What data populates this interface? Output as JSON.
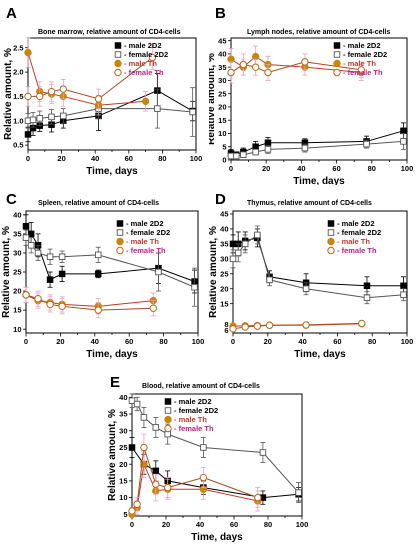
{
  "colors": {
    "male_2D2": "#000000",
    "female_2D2": "#555555",
    "male_Th": "#c0392b",
    "female_Th": "#a84a1a",
    "male_Th_marker": "#c8860a",
    "female_Th_marker_stroke": "#b8661a",
    "error_pink": "#e8a0c8",
    "legend_female_Th_text": "#c02080"
  },
  "chart_data": [
    {
      "id": "A",
      "panel_label": "A",
      "type": "line",
      "title": "Bone marrow, relative amount of CD4-cells",
      "xlabel": "Time, days",
      "ylabel": "Relative amount, %",
      "xlim": [
        0,
        100
      ],
      "ylim": [
        0.4,
        2.7
      ],
      "yticks": [
        0.5,
        1.0,
        1.5,
        2.0,
        2.5
      ],
      "ytick_labels": [
        "0.5",
        "1.0",
        "1.5",
        "2.0",
        "2.5"
      ],
      "xticks": [
        0,
        10,
        20,
        30,
        40,
        50,
        60,
        70,
        80,
        90,
        100
      ],
      "xtick_labels": [
        "0",
        "10",
        "20",
        "30",
        "40",
        "50",
        "60",
        "70",
        "80",
        "90",
        "100"
      ],
      "legend": [
        "- male 2D2",
        "- female 2D2",
        "- male Th",
        "- female Th"
      ],
      "series": [
        {
          "key": "male_2D2",
          "x": [
            0,
            3,
            7,
            14,
            21,
            42,
            77,
            98
          ],
          "y": [
            0.72,
            0.85,
            0.9,
            0.92,
            1.0,
            1.1,
            1.62,
            1.2
          ],
          "err": [
            0.15,
            0.15,
            0.12,
            0.15,
            0.15,
            0.3,
            0.35,
            0.2
          ]
        },
        {
          "key": "female_2D2",
          "x": [
            0,
            3,
            7,
            14,
            21,
            42,
            77,
            98
          ],
          "y": [
            1.0,
            1.02,
            1.05,
            1.08,
            1.1,
            1.25,
            1.25,
            1.18
          ],
          "err": [
            0.15,
            0.15,
            0.15,
            0.15,
            0.15,
            0.2,
            0.4,
            0.5
          ]
        },
        {
          "key": "male_Th",
          "x": [
            0,
            7,
            14,
            21,
            42,
            70
          ],
          "y": [
            2.4,
            1.6,
            1.55,
            1.5,
            1.32,
            1.4
          ],
          "err": [
            0.3,
            0.2,
            0.2,
            0.2,
            0.2,
            0.2
          ]
        },
        {
          "key": "female_Th",
          "x": [
            0,
            7,
            14,
            21,
            42,
            74
          ],
          "y": [
            1.5,
            1.5,
            1.6,
            1.65,
            1.45,
            2.3
          ],
          "err": [
            0.2,
            0.2,
            0.2,
            0.2,
            0.2,
            0.25
          ]
        }
      ]
    },
    {
      "id": "B",
      "panel_label": "B",
      "type": "line",
      "title": "Lymph nodes, relative amount of CD4-cells",
      "xlabel": "Time, days",
      "ylabel": "Relative amount, %",
      "xlim": [
        0,
        100
      ],
      "ylim": [
        0,
        46
      ],
      "yticks": [
        0,
        5,
        10,
        15,
        20,
        25,
        30,
        35,
        40,
        45
      ],
      "ytick_labels": [
        "0",
        "5",
        "10",
        "15",
        "20",
        "25",
        "30",
        "35",
        "40",
        "45"
      ],
      "xticks": [
        0,
        10,
        20,
        30,
        40,
        50,
        60,
        70,
        80,
        90,
        100
      ],
      "xtick_labels": [
        "0",
        "10",
        "20",
        "30",
        "40",
        "50",
        "60",
        "70",
        "80",
        "90",
        "100"
      ],
      "legend": [
        "- male 2D2",
        "- female 2D2",
        "- male Th",
        "- female Th"
      ],
      "series": [
        {
          "key": "male_2D2",
          "x": [
            0,
            3,
            7,
            14,
            21,
            42,
            77,
            98
          ],
          "y": [
            2.5,
            2.0,
            3.0,
            5.0,
            6.5,
            6.5,
            7.0,
            11.0
          ],
          "err": [
            1.5,
            1.0,
            1.5,
            2.0,
            2.0,
            1.5,
            2.0,
            3.0
          ]
        },
        {
          "key": "female_2D2",
          "x": [
            0,
            3,
            7,
            14,
            21,
            42,
            77,
            98
          ],
          "y": [
            1.5,
            1.5,
            2.0,
            3.0,
            4.0,
            4.5,
            6.0,
            7.0
          ],
          "err": [
            1.0,
            1.0,
            1.0,
            1.0,
            1.5,
            1.5,
            1.5,
            3.0
          ]
        },
        {
          "key": "male_Th",
          "x": [
            0,
            7,
            14,
            21,
            42,
            74
          ],
          "y": [
            38.0,
            35.0,
            39.0,
            36.0,
            35.0,
            33.0
          ],
          "err": [
            4.0,
            3.0,
            4.0,
            3.0,
            3.0,
            3.0
          ]
        },
        {
          "key": "female_Th",
          "x": [
            0,
            7,
            14,
            21,
            42,
            74
          ],
          "y": [
            33.0,
            36.0,
            35.0,
            33.0,
            37.0,
            34.0
          ],
          "err": [
            4.0,
            4.0,
            3.0,
            3.0,
            3.0,
            3.0
          ]
        }
      ]
    },
    {
      "id": "C",
      "panel_label": "C",
      "type": "line",
      "title": "Spleen, relative amount of CD4-cells",
      "xlabel": "Time, days",
      "ylabel": "Relative amount, %",
      "xlim": [
        0,
        100
      ],
      "ylim": [
        9,
        41
      ],
      "yticks": [
        10,
        15,
        20,
        25,
        30,
        35,
        40
      ],
      "ytick_labels": [
        "10",
        "15",
        "20",
        "25",
        "30",
        "35",
        "40"
      ],
      "xticks": [
        0,
        10,
        20,
        30,
        40,
        50,
        60,
        70,
        80,
        90,
        100
      ],
      "xtick_labels": [
        "0",
        "10",
        "20",
        "30",
        "40",
        "50",
        "60",
        "70",
        "80",
        "90",
        "100"
      ],
      "legend": [
        "- male 2D2",
        "- female 2D2",
        "- male Th",
        "- female Th"
      ],
      "series": [
        {
          "key": "male_2D2",
          "x": [
            0,
            3,
            7,
            14,
            21,
            42,
            77,
            98
          ],
          "y": [
            37.0,
            35.0,
            32.0,
            23.0,
            24.5,
            24.5,
            26.0,
            22.5
          ],
          "err": [
            3.0,
            3.0,
            3.0,
            2.0,
            2.0,
            1.0,
            4.0,
            3.0
          ]
        },
        {
          "key": "female_2D2",
          "x": [
            0,
            3,
            7,
            14,
            21,
            42,
            77,
            98
          ],
          "y": [
            34.0,
            32.0,
            30.0,
            29.0,
            29.0,
            29.5,
            25.0,
            21.0
          ],
          "err": [
            2.0,
            2.0,
            2.0,
            2.0,
            1.5,
            2.0,
            5.0,
            5.0
          ]
        },
        {
          "key": "male_Th",
          "x": [
            0,
            7,
            14,
            21,
            42,
            74
          ],
          "y": [
            19.0,
            17.5,
            17.0,
            16.5,
            16.0,
            17.5
          ],
          "err": [
            2.0,
            2.0,
            2.0,
            2.0,
            2.0,
            2.0
          ]
        },
        {
          "key": "female_Th",
          "x": [
            0,
            7,
            14,
            21,
            42,
            74
          ],
          "y": [
            19.0,
            18.0,
            16.5,
            16.0,
            15.0,
            15.5
          ],
          "err": [
            2.0,
            2.0,
            2.0,
            2.0,
            2.0,
            2.0
          ]
        }
      ]
    },
    {
      "id": "D",
      "panel_label": "D",
      "type": "line",
      "title": "Thymus, relative amount of CD4-cells",
      "xlabel": "Time, days",
      "ylabel": "Relative amount, %",
      "xlim": [
        0,
        100
      ],
      "ylim": [
        5.2,
        46
      ],
      "yticks": [
        6,
        8,
        15,
        20,
        25,
        30,
        35,
        40,
        45
      ],
      "ytick_labels": [
        "6",
        "8",
        "15",
        "20",
        "25",
        "30",
        "35",
        "40",
        "45"
      ],
      "xticks": [
        0,
        10,
        20,
        30,
        40,
        50,
        60,
        70,
        80,
        90,
        100
      ],
      "xtick_labels": [
        "0",
        "10",
        "20",
        "30",
        "40",
        "50",
        "60",
        "70",
        "80",
        "90",
        "100"
      ],
      "legend": [
        "- male 2D2",
        "- female 2D2",
        "- male Th",
        "- female Th"
      ],
      "series": [
        {
          "key": "male_2D2",
          "x": [
            0,
            3,
            7,
            14,
            21,
            42,
            77,
            98
          ],
          "y": [
            35.0,
            35.0,
            36.0,
            37.0,
            24.0,
            22.0,
            21.0,
            21.0
          ],
          "err": [
            3.0,
            4.0,
            3.0,
            3.0,
            2.0,
            3.0,
            3.0,
            3.0
          ]
        },
        {
          "key": "female_2D2",
          "x": [
            0,
            3,
            7,
            14,
            21,
            42,
            77,
            98
          ],
          "y": [
            30.0,
            32.0,
            35.0,
            38.0,
            23.0,
            20.0,
            17.0,
            18.0
          ],
          "err": [
            3.0,
            3.0,
            3.0,
            3.0,
            2.0,
            2.0,
            2.0,
            2.0
          ]
        },
        {
          "key": "male_Th",
          "x": [
            0,
            7,
            14,
            21,
            42,
            74
          ],
          "y": [
            7.5,
            7.6,
            7.7,
            7.8,
            7.8,
            8.3
          ],
          "err": [
            0.7,
            0.6,
            0.6,
            0.6,
            0.8,
            0.7
          ]
        },
        {
          "key": "female_Th",
          "x": [
            0,
            7,
            14,
            21,
            42,
            74
          ],
          "y": [
            6.6,
            7.2,
            7.5,
            7.8,
            7.9,
            8.4
          ],
          "err": [
            0.7,
            0.6,
            0.6,
            0.6,
            0.6,
            0.7
          ]
        }
      ]
    },
    {
      "id": "E",
      "panel_label": "E",
      "type": "line",
      "title": "Blood, relative amount of CD4-cells",
      "xlabel": "Time, days",
      "ylabel": "Relative amount, %",
      "xlim": [
        0,
        100
      ],
      "ylim": [
        4.5,
        41
      ],
      "yticks": [
        5,
        10,
        15,
        20,
        25,
        30,
        35,
        40
      ],
      "ytick_labels": [
        "5",
        "10",
        "15",
        "20",
        "25",
        "30",
        "35",
        "40"
      ],
      "xticks": [
        0,
        10,
        20,
        30,
        40,
        50,
        60,
        70,
        80,
        90,
        100
      ],
      "xtick_labels": [
        "0",
        "10",
        "20",
        "30",
        "40",
        "50",
        "60",
        "70",
        "80",
        "90",
        "100"
      ],
      "legend": [
        "- male 2D2",
        "- female 2D2",
        "- male Th",
        "- female Th"
      ],
      "series": [
        {
          "key": "male_2D2",
          "x": [
            0,
            7,
            14,
            21,
            42,
            77,
            98
          ],
          "y": [
            25.0,
            20.0,
            18.0,
            15.0,
            13.0,
            10.0,
            11.0
          ],
          "err": [
            3.0,
            3.0,
            3.0,
            3.0,
            2.0,
            2.0,
            2.0
          ]
        },
        {
          "key": "female_2D2",
          "x": [
            0,
            3,
            7,
            14,
            21,
            42,
            77,
            98
          ],
          "y": [
            39.0,
            38.0,
            34.0,
            31.0,
            29.0,
            25.0,
            23.5,
            11.5
          ],
          "err": [
            2.0,
            2.0,
            3.0,
            3.0,
            3.0,
            3.0,
            3.0,
            3.0
          ]
        },
        {
          "key": "male_Th",
          "x": [
            0,
            3,
            7,
            14,
            21,
            42,
            74
          ],
          "y": [
            5.0,
            7.0,
            20.0,
            12.0,
            12.5,
            12.5,
            9.0
          ],
          "err": [
            1.0,
            2.0,
            4.0,
            3.0,
            3.0,
            3.0,
            3.0
          ]
        },
        {
          "key": "female_Th",
          "x": [
            0,
            3,
            7,
            14,
            21,
            42,
            74
          ],
          "y": [
            6.0,
            8.0,
            25.0,
            14.0,
            13.0,
            16.0,
            10.0
          ],
          "err": [
            1.0,
            2.0,
            4.0,
            3.0,
            3.0,
            3.0,
            3.0
          ]
        }
      ]
    }
  ]
}
